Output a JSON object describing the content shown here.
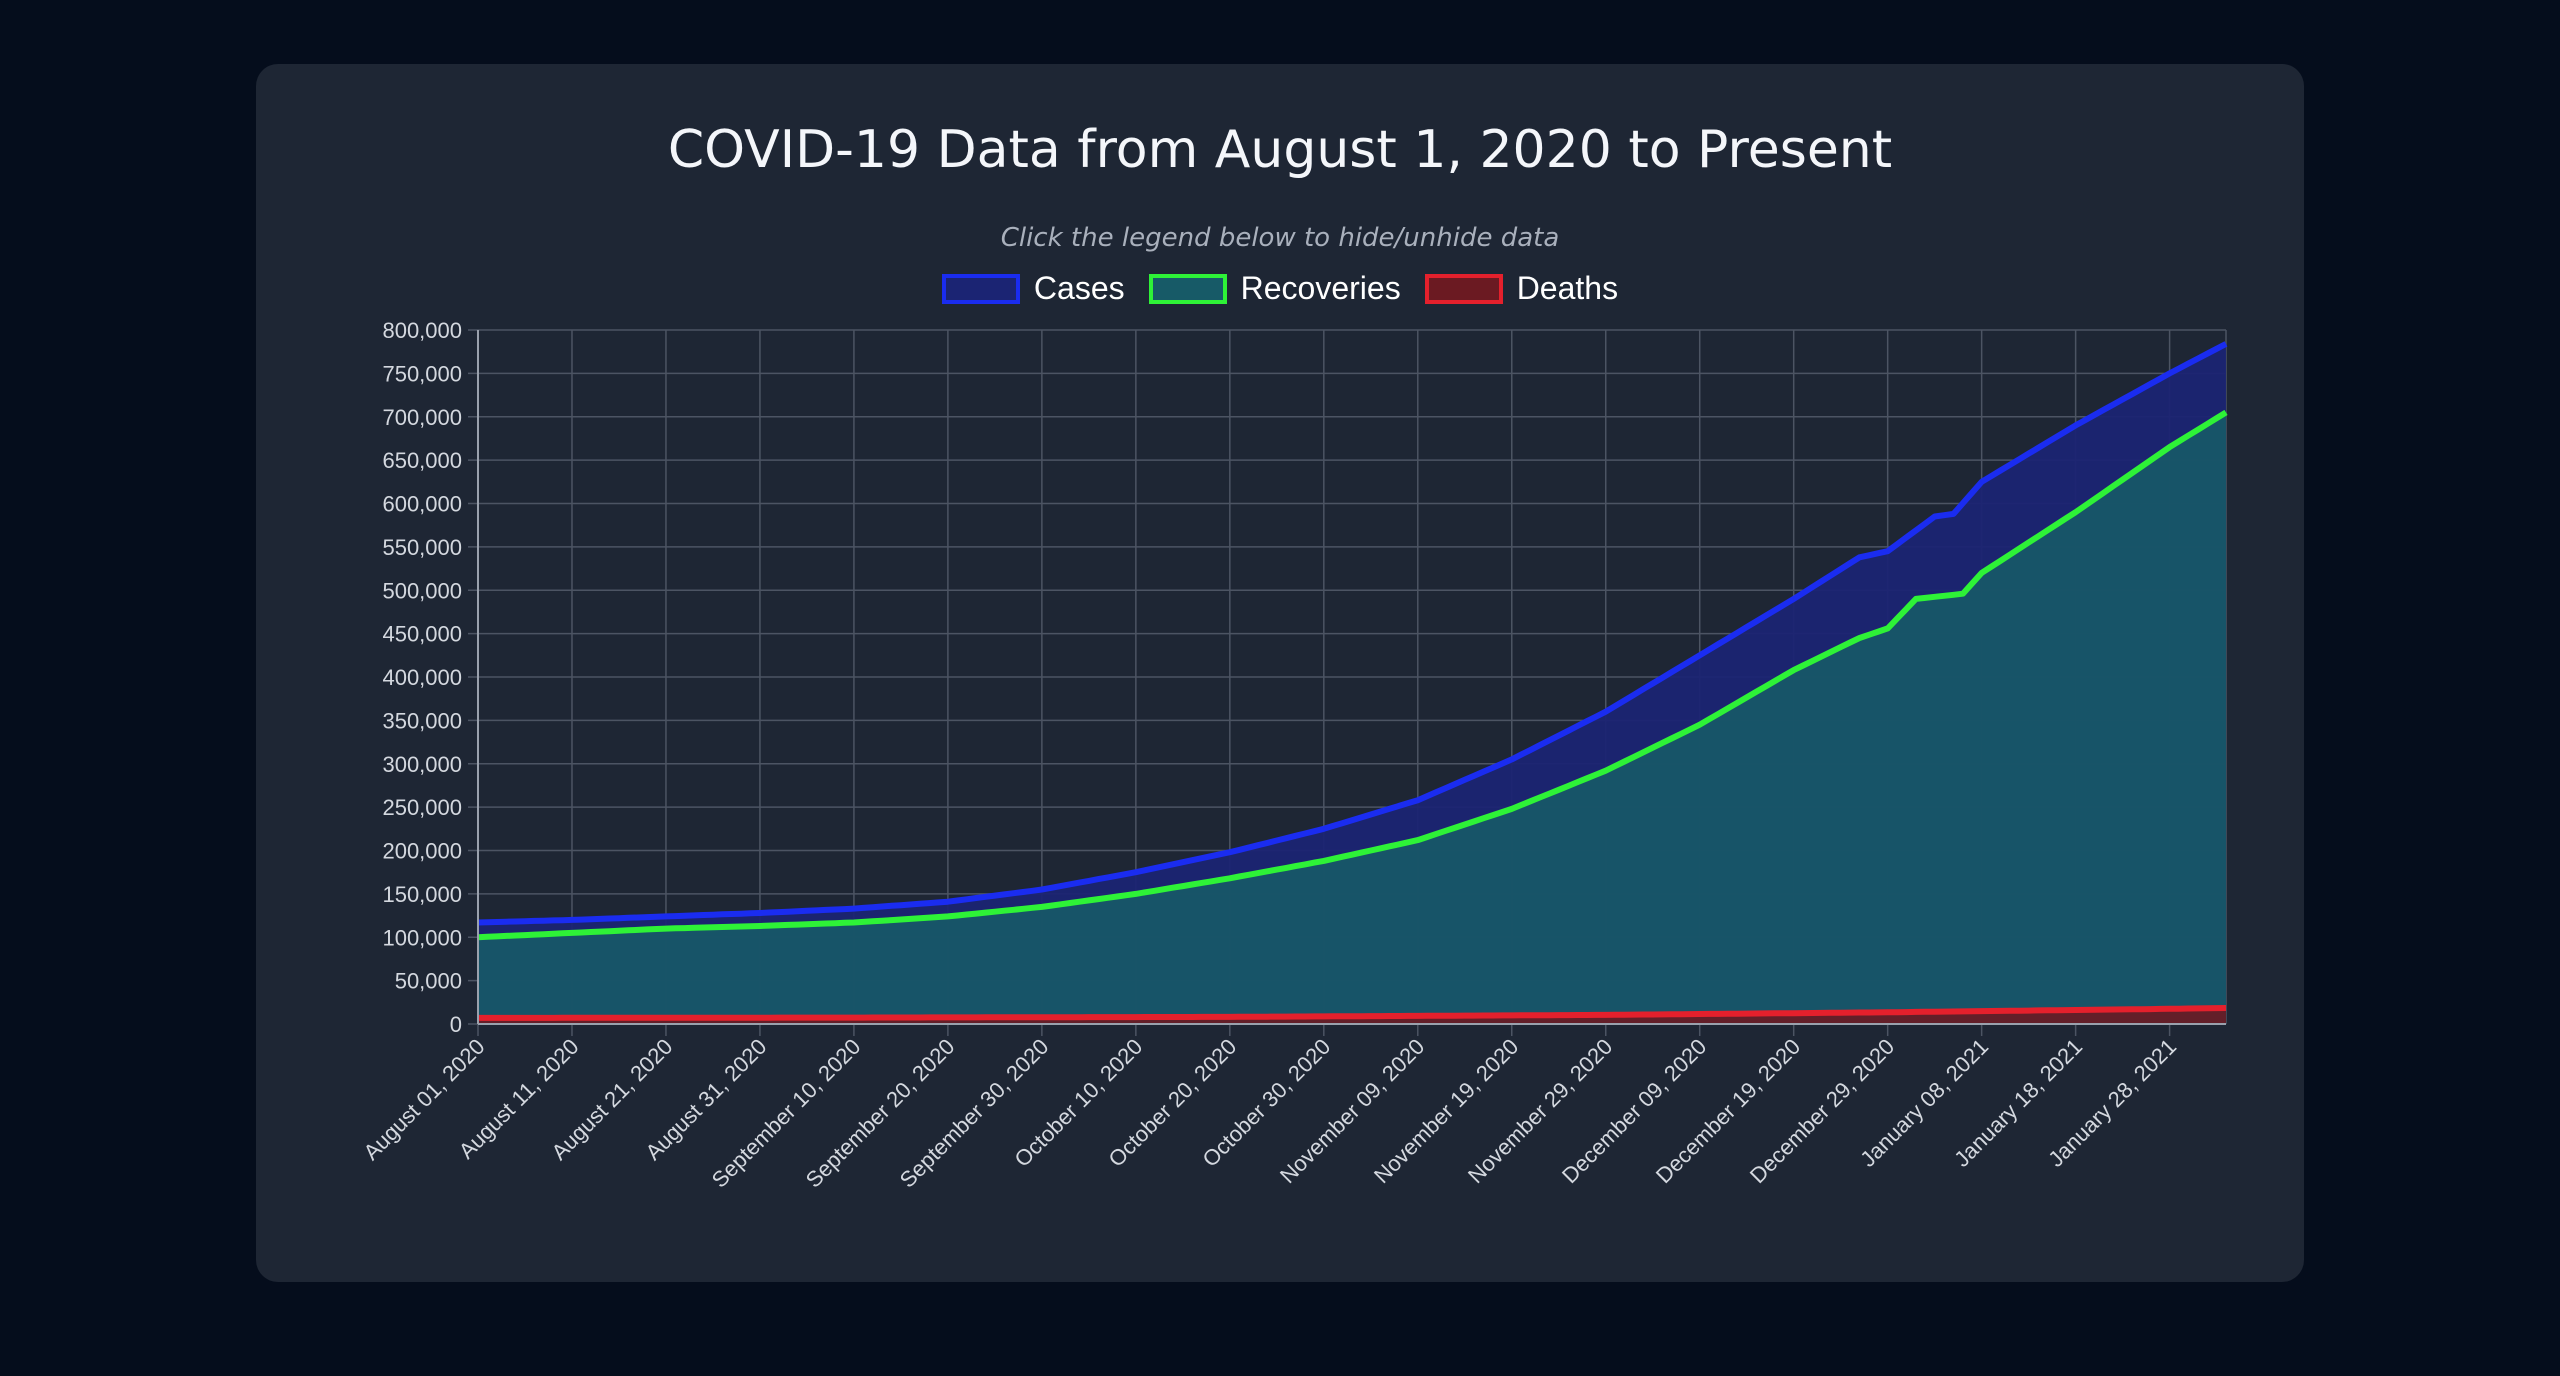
{
  "chart_data": {
    "type": "area",
    "title": "COVID-19 Data from August 1, 2020 to Present",
    "subtitle": "Click the legend below to hide/unhide data",
    "xlabel": "",
    "ylabel": "",
    "ylim": [
      0,
      800000
    ],
    "y_ticks": [
      "0",
      "50,000",
      "100,000",
      "150,000",
      "200,000",
      "250,000",
      "300,000",
      "350,000",
      "400,000",
      "450,000",
      "500,000",
      "550,000",
      "600,000",
      "650,000",
      "700,000",
      "750,000",
      "800,000"
    ],
    "x_start": "2020-08-01",
    "x_end": "2021-02-03",
    "x_tick_labels": [
      "August 01, 2020",
      "August 11, 2020",
      "August 21, 2020",
      "August 31, 2020",
      "September 10, 2020",
      "September 20, 2020",
      "September 30, 2020",
      "October 10, 2020",
      "October 20, 2020",
      "October 30, 2020",
      "November 09, 2020",
      "November 19, 2020",
      "November 29, 2020",
      "December 09, 2020",
      "December 19, 2020",
      "December 29, 2020",
      "January 08, 2021",
      "January 18, 2021",
      "January 28, 2021"
    ],
    "grid": true,
    "legend_position": "top-center",
    "series": [
      {
        "name": "Cases",
        "color": "#1a2cf0",
        "fill": "#1b2473",
        "points": [
          [
            "2020-08-01",
            117000
          ],
          [
            "2020-08-11",
            120000
          ],
          [
            "2020-08-21",
            124000
          ],
          [
            "2020-08-31",
            128000
          ],
          [
            "2020-09-10",
            133000
          ],
          [
            "2020-09-20",
            141000
          ],
          [
            "2020-09-30",
            155000
          ],
          [
            "2020-10-10",
            175000
          ],
          [
            "2020-10-20",
            198000
          ],
          [
            "2020-10-30",
            225000
          ],
          [
            "2020-11-09",
            258000
          ],
          [
            "2020-11-19",
            305000
          ],
          [
            "2020-11-29",
            360000
          ],
          [
            "2020-12-09",
            425000
          ],
          [
            "2020-12-19",
            490000
          ],
          [
            "2020-12-26",
            538000
          ],
          [
            "2020-12-29",
            545000
          ],
          [
            "2021-01-03",
            585000
          ],
          [
            "2021-01-05",
            588000
          ],
          [
            "2021-01-08",
            625000
          ],
          [
            "2021-01-18",
            690000
          ],
          [
            "2021-01-28",
            750000
          ],
          [
            "2021-02-03",
            784000
          ]
        ]
      },
      {
        "name": "Recoveries",
        "color": "#2ef237",
        "fill": "#175a67",
        "points": [
          [
            "2020-08-01",
            100000
          ],
          [
            "2020-08-11",
            105000
          ],
          [
            "2020-08-21",
            110000
          ],
          [
            "2020-08-31",
            113000
          ],
          [
            "2020-09-10",
            117000
          ],
          [
            "2020-09-20",
            124000
          ],
          [
            "2020-09-30",
            135000
          ],
          [
            "2020-10-10",
            150000
          ],
          [
            "2020-10-20",
            168000
          ],
          [
            "2020-10-30",
            188000
          ],
          [
            "2020-11-09",
            212000
          ],
          [
            "2020-11-19",
            248000
          ],
          [
            "2020-11-29",
            292000
          ],
          [
            "2020-12-09",
            345000
          ],
          [
            "2020-12-19",
            408000
          ],
          [
            "2020-12-26",
            445000
          ],
          [
            "2020-12-29",
            456000
          ],
          [
            "2021-01-01",
            490000
          ],
          [
            "2021-01-06",
            496000
          ],
          [
            "2021-01-08",
            520000
          ],
          [
            "2021-01-18",
            590000
          ],
          [
            "2021-01-28",
            665000
          ],
          [
            "2021-02-03",
            705000
          ]
        ]
      },
      {
        "name": "Deaths",
        "color": "#e4202c",
        "fill": "#6b1a22",
        "points": [
          [
            "2020-08-01",
            7000
          ],
          [
            "2020-09-10",
            7400
          ],
          [
            "2020-10-20",
            8200
          ],
          [
            "2020-11-29",
            10500
          ],
          [
            "2020-12-29",
            13500
          ],
          [
            "2021-01-28",
            17500
          ],
          [
            "2021-02-03",
            18500
          ]
        ]
      }
    ]
  },
  "colors": {
    "background": "#050d1c",
    "card": "#1e2634",
    "grid": "#4c5463",
    "tick_text": "#d4d8df"
  }
}
